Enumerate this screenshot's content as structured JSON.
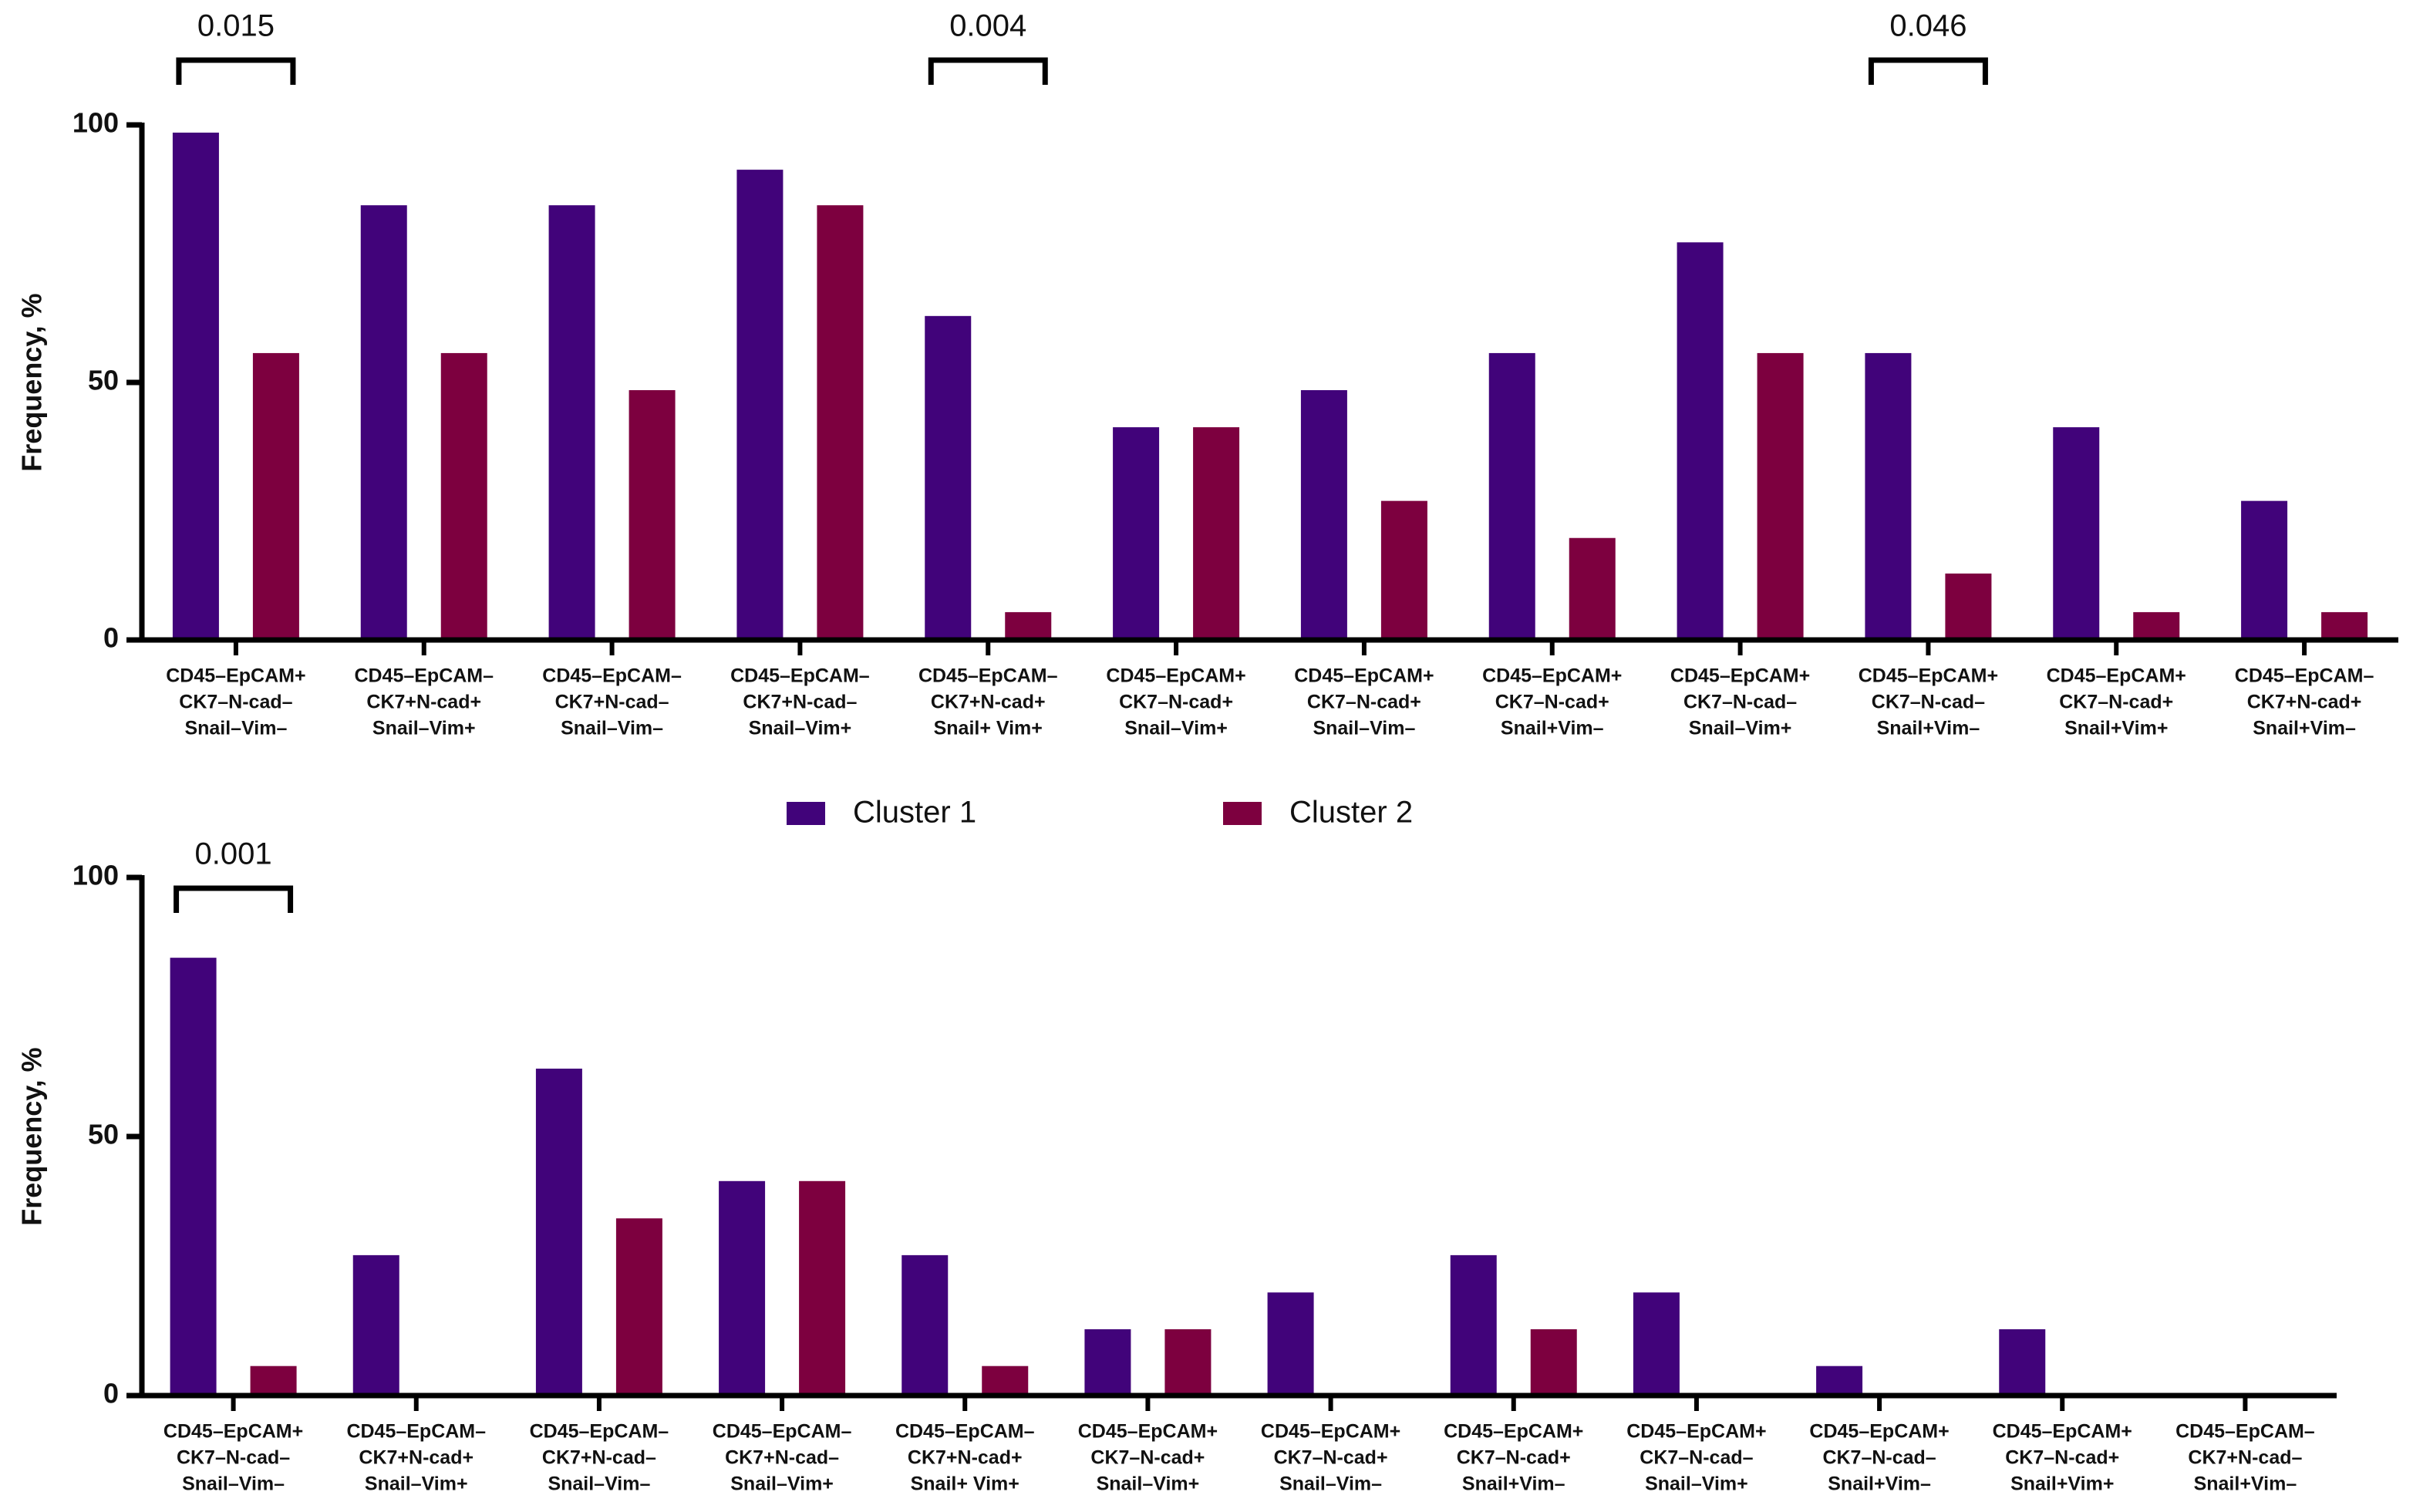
{
  "chart_data": [
    {
      "type": "bar",
      "ylabel": "Frequency, %",
      "categories": [
        [
          "CD45–EpCAM+",
          "CK7–N-cad–",
          "Snail–Vim–"
        ],
        [
          "CD45–EpCAM–",
          "CK7+N-cad+",
          "Snail–Vim+"
        ],
        [
          "CD45–EpCAM–",
          "CK7+N-cad–",
          "Snail–Vim–"
        ],
        [
          "CD45–EpCAM–",
          "CK7+N-cad–",
          "Snail–Vim+"
        ],
        [
          "CD45–EpCAM–",
          "CK7+N-cad+",
          "Snail+ Vim+"
        ],
        [
          "CD45–EpCAM+",
          "CK7–N-cad+",
          "Snail–Vim+"
        ],
        [
          "CD45–EpCAM+",
          "CK7–N-cad+",
          "Snail–Vim–"
        ],
        [
          "CD45–EpCAM+",
          "CK7–N-cad+",
          "Snail+Vim–"
        ],
        [
          "CD45–EpCAM+",
          "CK7–N-cad–",
          "Snail–Vim+"
        ],
        [
          "CD45–EpCAM+",
          "CK7–N-cad–",
          "Snail+Vim–"
        ],
        [
          "CD45–EpCAM+",
          "CK7–N-cad+",
          "Snail+Vim+"
        ],
        [
          "CD45–EpCAM–",
          "CK7+N-cad+",
          "Snail+Vim–"
        ]
      ],
      "series": [
        {
          "name": "Cluster 1",
          "color": "#41037a",
          "values": [
            98.5,
            84.4,
            84.4,
            91.3,
            62.9,
            41.3,
            48.5,
            55.7,
            77.2,
            55.7,
            41.3,
            27
          ]
        },
        {
          "name": "Cluster 2",
          "color": "#7d003f",
          "values": [
            55.7,
            55.7,
            48.5,
            84.4,
            5.4,
            41.3,
            27,
            19.8,
            55.7,
            12.9,
            5.4,
            5.4
          ]
        }
      ],
      "ylim": [
        0,
        100
      ],
      "yticks": [
        0,
        50,
        100
      ],
      "annotations": [
        {
          "text": "0.015",
          "at": 0
        },
        {
          "text": "0.004",
          "at": 4
        },
        {
          "text": "0.046",
          "at": 9
        }
      ]
    },
    {
      "type": "bar",
      "ylabel": "Frequency, %",
      "categories": [
        [
          "CD45–EpCAM+",
          "CK7–N-cad–",
          "Snail–Vim–"
        ],
        [
          "CD45–EpCAM–",
          "CK7+N-cad+",
          "Snail–Vim+"
        ],
        [
          "CD45–EpCAM–",
          "CK7+N-cad–",
          "Snail–Vim–"
        ],
        [
          "CD45–EpCAM–",
          "CK7+N-cad–",
          "Snail–Vim+"
        ],
        [
          "CD45–EpCAM–",
          "CK7+N-cad+",
          "Snail+ Vim+"
        ],
        [
          "CD45–EpCAM+",
          "CK7–N-cad+",
          "Snail–Vim+"
        ],
        [
          "CD45–EpCAM+",
          "CK7–N-cad+",
          "Snail–Vim–"
        ],
        [
          "CD45–EpCAM+",
          "CK7–N-cad+",
          "Snail+Vim–"
        ],
        [
          "CD45–EpCAM+",
          "CK7–N-cad–",
          "Snail–Vim+"
        ],
        [
          "CD45–EpCAM+",
          "CK7–N-cad–",
          "Snail+Vim–"
        ],
        [
          "CD45–EpCAM+",
          "CK7–N-cad+",
          "Snail+Vim+"
        ],
        [
          "CD45–EpCAM–",
          "CK7+N-cad–",
          "Snail+Vim–"
        ]
      ],
      "series": [
        {
          "name": "Cluster 1",
          "color": "#41037a",
          "values": [
            84.5,
            27.1,
            63.1,
            41.4,
            27.1,
            12.8,
            19.9,
            27.1,
            19.9,
            5.7,
            12.8,
            0
          ]
        },
        {
          "name": "Cluster 2",
          "color": "#7d003f",
          "values": [
            5.7,
            0,
            34.2,
            41.4,
            5.7,
            12.8,
            0,
            12.8,
            0,
            0,
            0,
            0
          ]
        }
      ],
      "ylim": [
        0,
        100
      ],
      "yticks": [
        0,
        50,
        100
      ],
      "annotations": [
        {
          "text": "0.001",
          "at": 0
        }
      ]
    }
  ]
}
